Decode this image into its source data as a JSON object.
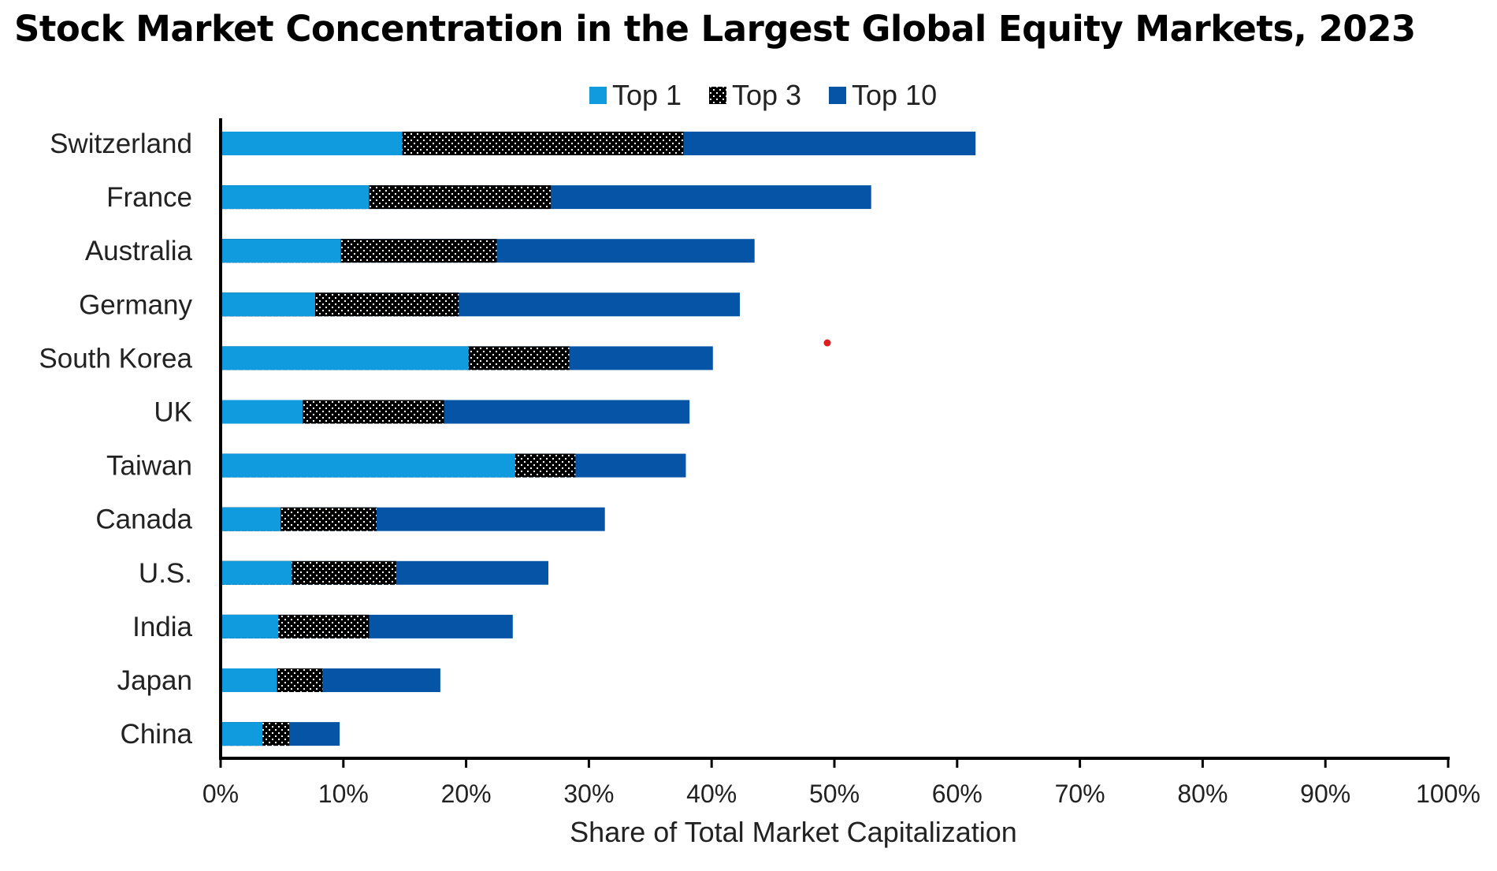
{
  "chart_data": {
    "type": "bar",
    "orientation": "horizontal",
    "stacked": true,
    "title": "Stock Market Concentration in the Largest Global Equity Markets, 2023",
    "xlabel": "Share of Total Market Capitalization",
    "ylabel": "",
    "xlim": [
      0,
      100
    ],
    "x_ticks": [
      "0%",
      "10%",
      "20%",
      "30%",
      "40%",
      "50%",
      "60%",
      "70%",
      "80%",
      "90%",
      "100%"
    ],
    "legend_position": "top-center",
    "categories": [
      "Switzerland",
      "France",
      "Australia",
      "Germany",
      "South Korea",
      "UK",
      "Taiwan",
      "Canada",
      "U.S.",
      "India",
      "Japan",
      "China"
    ],
    "series": [
      {
        "name": "Top 1",
        "color": "#0F9BDE",
        "pattern": "solid",
        "cumulative_share": [
          14.8,
          12.1,
          9.8,
          7.7,
          20.2,
          6.7,
          24.0,
          4.9,
          5.8,
          4.7,
          4.6,
          3.4
        ]
      },
      {
        "name": "Top 3",
        "color": "#000000",
        "pattern": "dotted",
        "cumulative_share": [
          37.7,
          26.9,
          22.5,
          19.4,
          28.4,
          18.2,
          28.9,
          12.7,
          14.3,
          12.1,
          8.3,
          5.6
        ]
      },
      {
        "name": "Top 10",
        "color": "#0654A6",
        "pattern": "solid",
        "cumulative_share": [
          61.5,
          53.0,
          43.5,
          42.3,
          40.1,
          38.2,
          37.9,
          31.3,
          26.7,
          23.8,
          17.9,
          9.7
        ]
      }
    ]
  }
}
